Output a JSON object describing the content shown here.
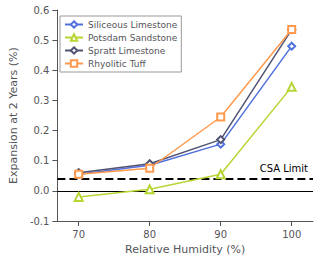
{
  "chart_data": {
    "type": "line",
    "xlabel": "Relative Humidity (%)",
    "ylabel": "Expansion at 2 Years (%)",
    "x": [
      70,
      80,
      90,
      100
    ],
    "series": [
      {
        "name": "Siliceous Limestone",
        "values": [
          0.055,
          0.085,
          0.155,
          0.48
        ],
        "marker": "diamond"
      },
      {
        "name": "Potsdam Sandstone",
        "values": [
          -0.02,
          0.005,
          0.055,
          0.345
        ],
        "marker": "triangle"
      },
      {
        "name": "Spratt Limestone",
        "values": [
          0.06,
          0.09,
          0.17,
          0.535
        ],
        "marker": "diamond"
      },
      {
        "name": "Rhyolitic Tuff",
        "values": [
          0.055,
          0.075,
          0.245,
          0.535
        ],
        "marker": "square"
      }
    ],
    "reference_lines": [
      {
        "value": 0.04,
        "label": "CSA Limit",
        "color": "black",
        "line_style": "dashed"
      },
      {
        "value": 0,
        "color": "black",
        "line_style": "solid"
      }
    ],
    "xlim": [
      67,
      103
    ],
    "ylim": [
      -0.1,
      0.6
    ],
    "xticks": [
      70,
      80,
      90,
      100
    ],
    "yticks": [
      -0.1,
      {
        "value": 0,
        "label": "0.0"
      },
      0.1,
      0.2,
      0.3,
      0.4,
      0.5,
      0.6
    ],
    "legend": "upper left",
    "grid": false
  }
}
